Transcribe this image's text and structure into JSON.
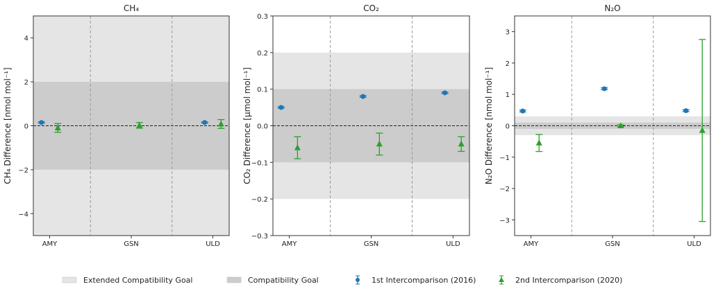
{
  "chart_data": [
    {
      "type": "scatter",
      "title": "CH₄",
      "ylabel": "CH₄ Difference [nmol mol⁻¹]",
      "categories": [
        "AMY",
        "GSN",
        "ULD"
      ],
      "ylim": [
        -5,
        5
      ],
      "yticks": [
        -4,
        -2,
        0,
        2,
        4
      ],
      "ytick_labels": [
        "−4",
        "−2",
        "0",
        "2",
        "4"
      ],
      "compatibility_goal": 2,
      "extended_compatibility_goal": 5,
      "series": [
        {
          "name": "1st Intercomparison (2016)",
          "marker": "circle",
          "values": [
            0.15,
            null,
            0.15
          ],
          "errors": [
            0.03,
            null,
            0.03
          ]
        },
        {
          "name": "2nd Intercomparison (2020)",
          "marker": "triangle",
          "values": [
            -0.1,
            0.02,
            0.08
          ],
          "errors": [
            0.2,
            0.13,
            0.2
          ]
        }
      ]
    },
    {
      "type": "scatter",
      "title": "CO₂",
      "ylabel": "CO₂ Difference [µmol mol⁻¹]",
      "categories": [
        "AMY",
        "GSN",
        "ULD"
      ],
      "ylim": [
        -0.3,
        0.3
      ],
      "yticks": [
        -0.3,
        -0.2,
        -0.1,
        0,
        0.1,
        0.2,
        0.3
      ],
      "ytick_labels": [
        "−0.3",
        "−0.2",
        "−0.1",
        "0.0",
        "0.1",
        "0.2",
        "0.3"
      ],
      "compatibility_goal": 0.1,
      "extended_compatibility_goal": 0.2,
      "series": [
        {
          "name": "1st Intercomparison (2016)",
          "marker": "circle",
          "values": [
            0.05,
            0.08,
            0.09
          ],
          "errors": [
            0.002,
            0.002,
            0.002
          ]
        },
        {
          "name": "2nd Intercomparison (2020)",
          "marker": "triangle",
          "values": [
            -0.06,
            -0.05,
            -0.05
          ],
          "errors": [
            0.03,
            0.03,
            0.02
          ]
        }
      ]
    },
    {
      "type": "scatter",
      "title": "N₂O",
      "ylabel": "N₂O Difference [nmol mol⁻¹]",
      "categories": [
        "AMY",
        "GSN",
        "ULD"
      ],
      "ylim": [
        -3.5,
        3.5
      ],
      "yticks": [
        -3,
        -2,
        -1,
        0,
        1,
        2,
        3
      ],
      "ytick_labels": [
        "−3",
        "−2",
        "−1",
        "0",
        "1",
        "2",
        "3"
      ],
      "compatibility_goal": 0.1,
      "extended_compatibility_goal": 0.3,
      "series": [
        {
          "name": "1st Intercomparison (2016)",
          "marker": "circle",
          "values": [
            0.47,
            1.18,
            0.48
          ],
          "errors": [
            0.03,
            0.03,
            0.03
          ]
        },
        {
          "name": "2nd Intercomparison (2020)",
          "marker": "triangle",
          "values": [
            -0.55,
            0.0,
            -0.15
          ],
          "errors": [
            0.27,
            0.03,
            2.9
          ]
        }
      ]
    }
  ],
  "legend": {
    "placement": "bottom",
    "items": [
      {
        "label": "Extended Compatibility Goal",
        "kind": "patch",
        "color": "#e5e5e5"
      },
      {
        "label": "Compatibility Goal",
        "kind": "patch",
        "color": "#cccccc"
      },
      {
        "label": "1st Intercomparison (2016)",
        "kind": "circle",
        "color": "#1f77b4"
      },
      {
        "label": "2nd Intercomparison (2020)",
        "kind": "triangle",
        "color": "#2ca02c"
      }
    ]
  },
  "colors": {
    "series1": "#1f77b4",
    "series2": "#2ca02c",
    "extended": "#e5e5e5",
    "compat": "#cccccc"
  }
}
